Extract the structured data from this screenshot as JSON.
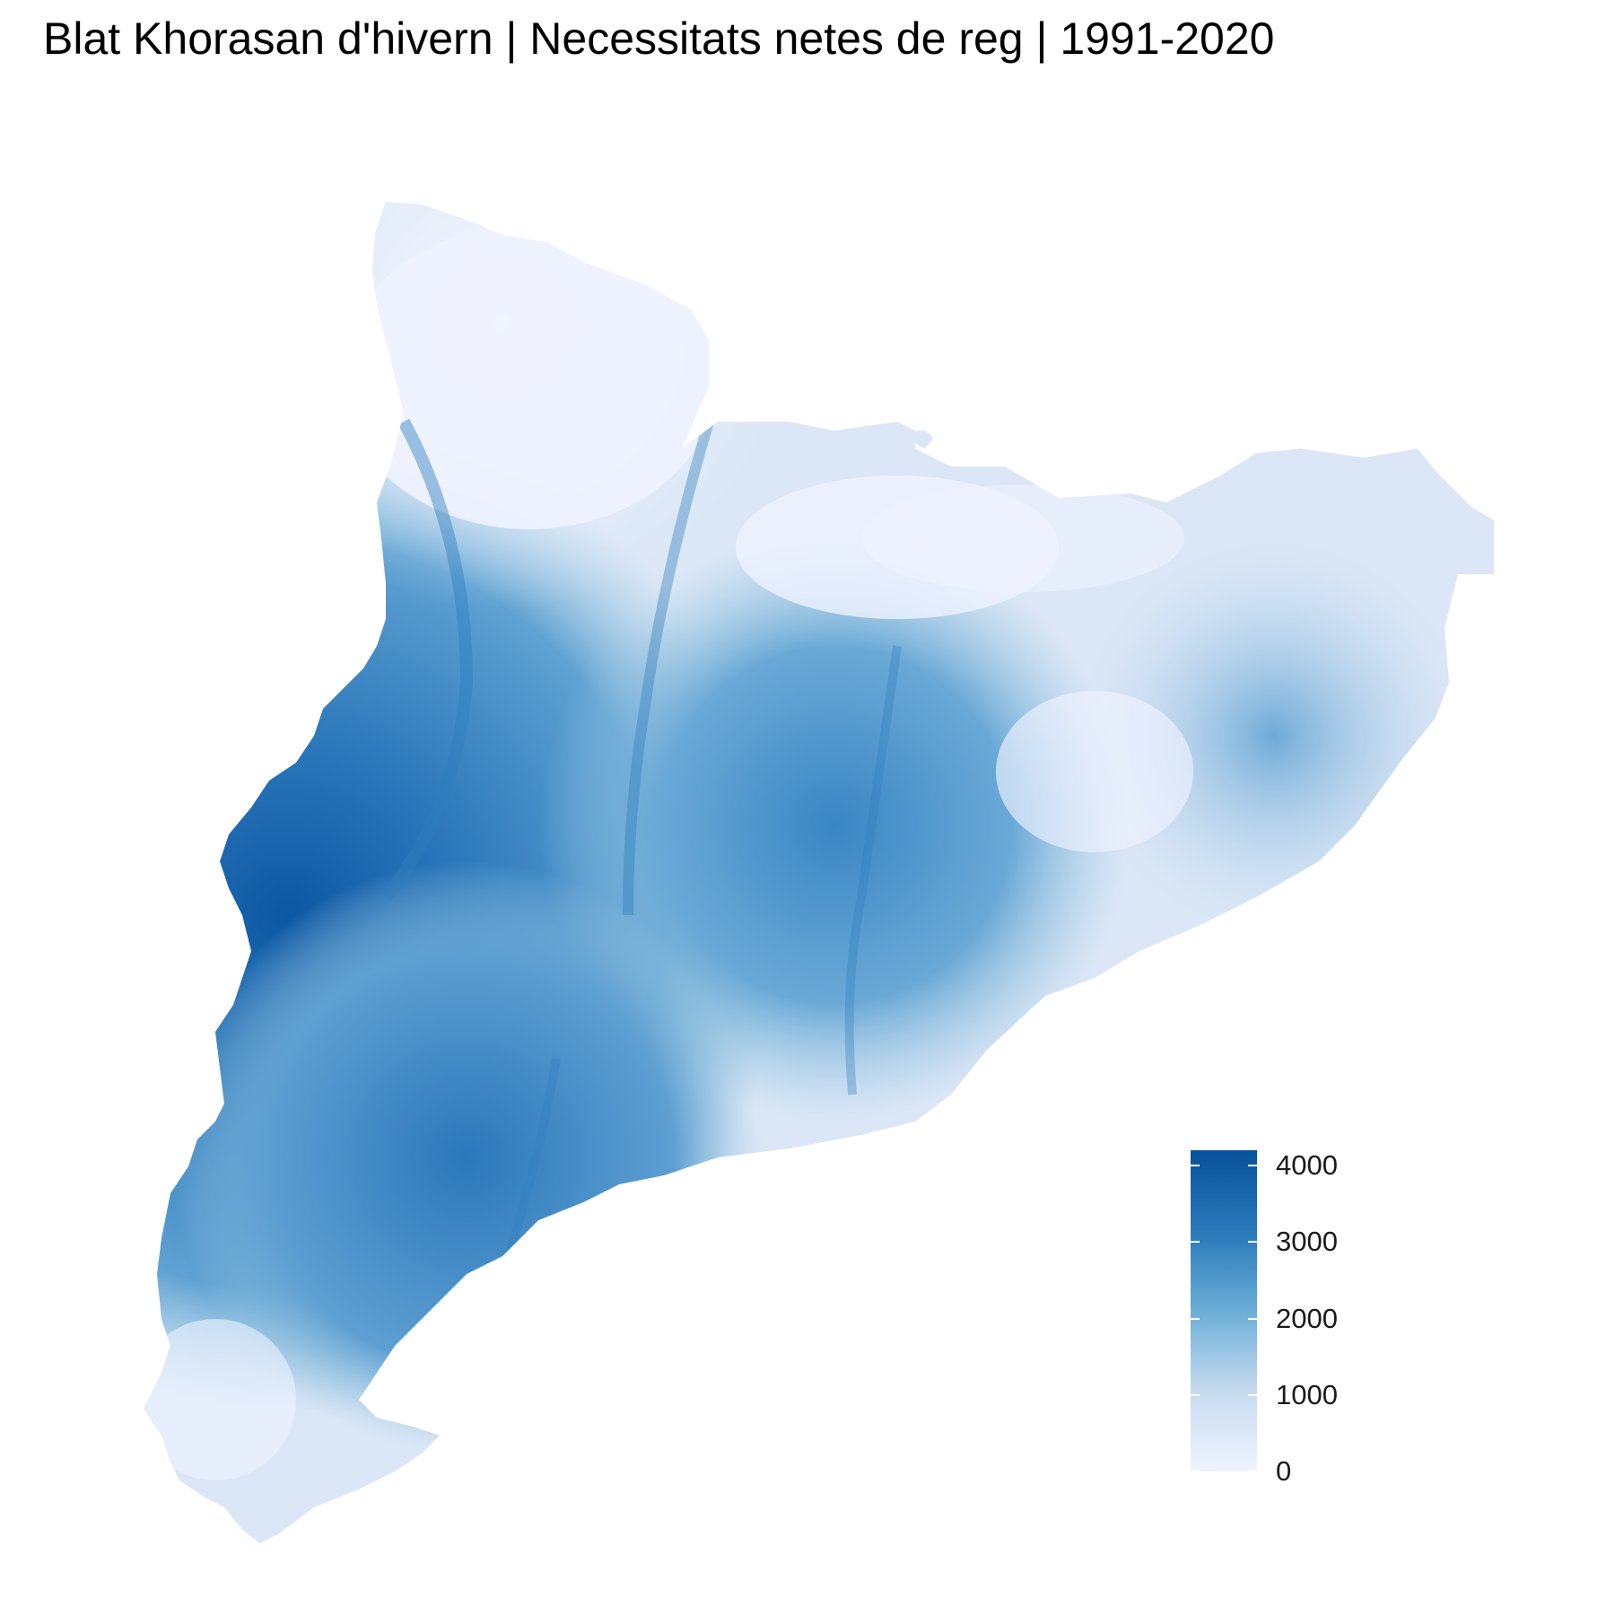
{
  "title": "Blat Khorasan d'hivern | Necessitats netes de reg | 1991-2020",
  "map": {
    "region": "Catalunya",
    "color_low": "#eff3ff",
    "color_high": "#08519c"
  },
  "legend": {
    "min": 0,
    "max": 4200,
    "ticks": [
      {
        "value": 4000,
        "label": "4000"
      },
      {
        "value": 3000,
        "label": "3000"
      },
      {
        "value": 2000,
        "label": "2000"
      },
      {
        "value": 1000,
        "label": "1000"
      },
      {
        "value": 0,
        "label": "0"
      }
    ]
  }
}
